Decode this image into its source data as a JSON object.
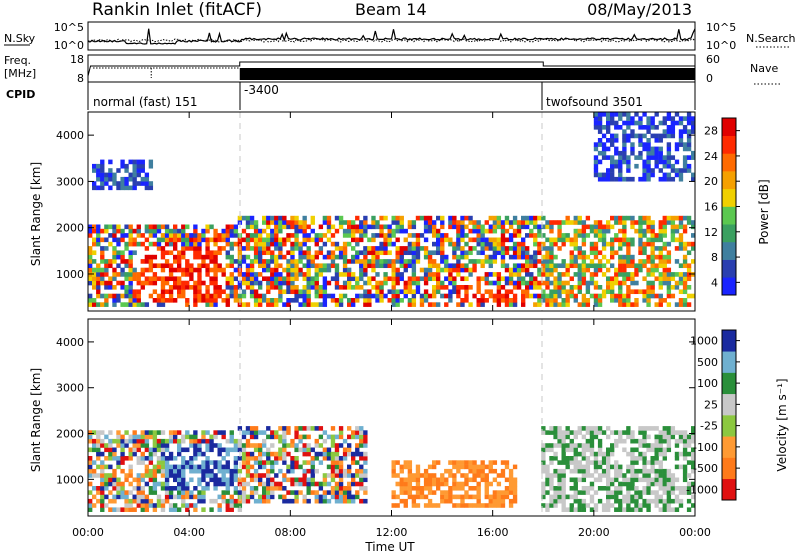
{
  "header": {
    "station": "Rankin Inlet (fitACF)",
    "beam": "Beam 14",
    "date": "08/May/2013"
  },
  "top_panels": {
    "nsky_label": "N.Sky",
    "nsky_ticks": [
      "10^5",
      "10^0"
    ],
    "nsearch_label": "N.Search",
    "nsearch_ticks": [
      "10^5",
      "10^0"
    ],
    "freq_label_1": "Freq.",
    "freq_label_2": "[MHz]",
    "freq_ticks": [
      "18",
      "8"
    ],
    "nave_label": "Nave",
    "nave_ticks": [
      "60",
      "0"
    ],
    "cpid_label": "CPID",
    "cpid_segments": [
      {
        "label": "normal (fast) 151",
        "start_hour": 0,
        "end_hour": 6
      },
      {
        "label": "-3400",
        "start_hour": 6,
        "end_hour": 18
      },
      {
        "label": "twofsound 3501",
        "start_hour": 18,
        "end_hour": 24
      }
    ]
  },
  "axes": {
    "ylabel": "Slant Range [km]",
    "y_ticks": [
      "1000",
      "2000",
      "3000",
      "4000"
    ],
    "x_ticks": [
      "00:00",
      "04:00",
      "08:00",
      "12:00",
      "16:00",
      "20:00",
      "00:00"
    ],
    "xlabel": "Time UT"
  },
  "colorbars": {
    "power_label": "Power [dB]",
    "power_ticks": [
      "28",
      "24",
      "20",
      "16",
      "12",
      "8",
      "4"
    ],
    "velocity_label": "Velocity [m s⁻¹]",
    "velocity_ticks": [
      "1000",
      "500",
      "100",
      "25",
      "-25",
      "-100",
      "-500",
      "-1000"
    ]
  },
  "colors": {
    "power": [
      "#1a24ff",
      "#2a3fb0",
      "#3f7f9f",
      "#3aa060",
      "#5bc850",
      "#f0d000",
      "#f5a000",
      "#ff6a00",
      "#ff2a00",
      "#e00000"
    ],
    "velocity": [
      "#e01010",
      "#ff7a1a",
      "#ff9a33",
      "#8cc840",
      "#c8c8c8",
      "#2a8f3a",
      "#6fb0d0",
      "#1a2a9f"
    ]
  },
  "chart_data": [
    {
      "type": "heatmap",
      "name": "Power",
      "xlabel": "Time UT",
      "ylabel": "Slant Range [km]",
      "xlim": [
        0,
        24
      ],
      "ylim": [
        200,
        4500
      ],
      "cbar_label": "Power [dB]",
      "cbar_ticks": [
        28,
        24,
        20,
        16,
        12,
        8,
        4
      ],
      "regions": [
        {
          "t0": 0.0,
          "t1": 6.0,
          "r0": 300,
          "r1": 2100,
          "level": "mixed"
        },
        {
          "t0": 2.0,
          "t1": 5.5,
          "r0": 400,
          "r1": 1600,
          "level": "high"
        },
        {
          "t0": 0.2,
          "t1": 2.5,
          "r0": 2800,
          "r1": 3500,
          "level": "low"
        },
        {
          "t0": 6.0,
          "t1": 18.0,
          "r0": 300,
          "r1": 2300,
          "level": "mixed"
        },
        {
          "t0": 14.5,
          "t1": 17.5,
          "r0": 400,
          "r1": 800,
          "level": "high"
        },
        {
          "t0": 18.0,
          "t1": 24.0,
          "r0": 300,
          "r1": 2300,
          "level": "mid"
        },
        {
          "t0": 20.0,
          "t1": 24.0,
          "r0": 3000,
          "r1": 4500,
          "level": "low"
        }
      ]
    },
    {
      "type": "heatmap",
      "name": "Velocity",
      "xlabel": "Time UT",
      "ylabel": "Slant Range [km]",
      "xlim": [
        0,
        24
      ],
      "ylim": [
        200,
        4500
      ],
      "cbar_label": "Velocity [m s⁻¹]",
      "cbar_ticks": [
        1000,
        500,
        100,
        25,
        -25,
        -100,
        -500,
        -1000
      ],
      "regions": [
        {
          "t0": 0.0,
          "t1": 6.0,
          "r0": 300,
          "r1": 2100,
          "level": "mixed"
        },
        {
          "t0": 3.0,
          "t1": 6.0,
          "r0": 800,
          "r1": 1800,
          "level": "positive-high"
        },
        {
          "t0": 6.0,
          "t1": 11.0,
          "r0": 500,
          "r1": 2200,
          "level": "mixed"
        },
        {
          "t0": 12.0,
          "t1": 17.0,
          "r0": 400,
          "r1": 1400,
          "level": "negative"
        },
        {
          "t0": 18.0,
          "t1": 24.0,
          "r0": 300,
          "r1": 2200,
          "level": "near-zero"
        }
      ]
    }
  ]
}
